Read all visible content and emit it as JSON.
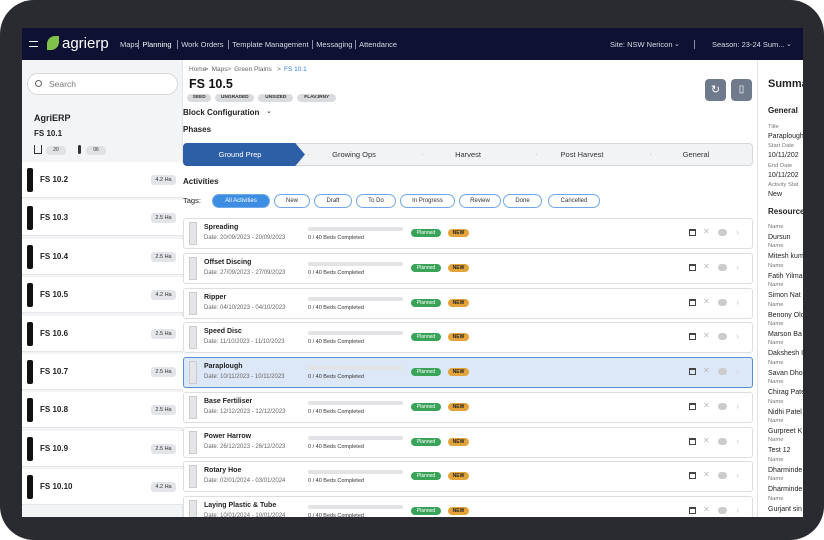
{
  "nav": {
    "logo": "agrierp",
    "menu": [
      "Maps",
      "Planning",
      "Work Orders",
      "Template Management",
      "Messaging",
      "Attendance"
    ],
    "site": "Site: NSW Nericon",
    "season": "Season: 23-24 Sum..."
  },
  "sidebar": {
    "search": "Search",
    "org": "AgriERP",
    "block": "FS 10.1",
    "stats": [
      "20",
      "06"
    ],
    "items": [
      {
        "name": "FS 10.2",
        "area": "4.2 Ha"
      },
      {
        "name": "FS 10.3",
        "area": "2.5 Ha"
      },
      {
        "name": "FS 10.4",
        "area": "2.5 Ha"
      },
      {
        "name": "FS 10.5",
        "area": "4.2 Ha"
      },
      {
        "name": "FS 10.6",
        "area": "2.5 Ha"
      },
      {
        "name": "FS 10.7",
        "area": "2.5 Ha"
      },
      {
        "name": "FS 10.8",
        "area": "2.5 Ha"
      },
      {
        "name": "FS 10.9",
        "area": "2.5 Ha"
      },
      {
        "name": "FS 10.10",
        "area": "4.2 Ha"
      }
    ]
  },
  "main": {
    "breadcrumb": [
      "Home",
      "Maps",
      "Green Plains",
      "FS 10.1"
    ],
    "title": "FS 10.5",
    "tags": [
      "SEED",
      "UNGRADED",
      "UNSIZED",
      "FLAVJRNY"
    ],
    "block_config": "Block Configuration",
    "phases_label": "Phases",
    "phases": [
      "Ground Prep",
      "Growing Ops",
      "Harvest",
      "Post Harvest",
      "General"
    ],
    "activities_label": "Activities",
    "tags_label": "Tags:",
    "filters": [
      "All Activities",
      "New",
      "Draft",
      "To Do",
      "In Progress",
      "Review",
      "Done",
      "Cancelled"
    ],
    "activities": [
      {
        "name": "Spreading",
        "date": "Date: 20/09/2023 - 20/09/2023",
        "progress": "0 / 40 Beds Completed",
        "status": "Planned",
        "badge": "NEW"
      },
      {
        "name": "Offset Discing",
        "date": "Date: 27/09/2023 - 27/09/2023",
        "progress": "0 / 40 Beds Completed",
        "status": "Planned",
        "badge": "NEW"
      },
      {
        "name": "Ripper",
        "date": "Date: 04/10/2023 - 04/10/2023",
        "progress": "0 / 40 Beds Completed",
        "status": "Planned",
        "badge": "NEW"
      },
      {
        "name": "Speed Disc",
        "date": "Date: 11/10/2023 - 11/10/2023",
        "progress": "0 / 40 Beds Completed",
        "status": "Planned",
        "badge": "NEW"
      },
      {
        "name": "Paraplough",
        "date": "Date: 10/11/2023 - 10/11/2023",
        "progress": "0 / 40 Beds Completed",
        "status": "Planned",
        "badge": "NEW"
      },
      {
        "name": "Base Fertiliser",
        "date": "Date: 12/12/2023 - 12/12/2023",
        "progress": "0 / 40 Beds Completed",
        "status": "Planned",
        "badge": "NEW"
      },
      {
        "name": "Power Harrow",
        "date": "Date: 26/12/2023 - 26/12/2023",
        "progress": "0 / 40 Beds Completed",
        "status": "Planned",
        "badge": "NEW"
      },
      {
        "name": "Rotary Hoe",
        "date": "Date: 02/01/2024 - 03/01/2024",
        "progress": "0 / 40 Beds Completed",
        "status": "Planned",
        "badge": "NEW"
      },
      {
        "name": "Laying Plastic & Tube",
        "date": "Date: 10/01/2024 - 10/01/2024",
        "progress": "0 / 40 Beds Completed",
        "status": "Planned",
        "badge": "NEW"
      }
    ]
  },
  "summary": {
    "title": "Summa",
    "general": "General",
    "fields": [
      {
        "label": "Title",
        "value": "Paraplough"
      },
      {
        "label": "Start Date",
        "value": "10/11/202"
      },
      {
        "label": "End Date",
        "value": "10/11/202"
      },
      {
        "label": "Activity Stat",
        "value": "New"
      }
    ],
    "resources_label": "Resource",
    "resources": [
      {
        "label": "Name",
        "value": "Dursun"
      },
      {
        "label": "Name",
        "value": "Mitesh kum"
      },
      {
        "label": "Name",
        "value": "Fatih Yilma"
      },
      {
        "label": "Name",
        "value": "Simon Nat"
      },
      {
        "label": "Name",
        "value": "Benony Olo"
      },
      {
        "label": "Name",
        "value": "Marson Ba"
      },
      {
        "label": "Name",
        "value": "Dakshesh I"
      },
      {
        "label": "Name",
        "value": "Savan Dho"
      },
      {
        "label": "Name",
        "value": "Chirag Pate"
      },
      {
        "label": "Name",
        "value": "Nidhi Patel"
      },
      {
        "label": "Name",
        "value": "Gurpreet K"
      },
      {
        "label": "Name",
        "value": "Test 12"
      },
      {
        "label": "Name",
        "value": "Dharminde"
      },
      {
        "label": "Name",
        "value": "Dharminde"
      },
      {
        "label": "Name",
        "value": "Gurjant sin"
      }
    ]
  }
}
